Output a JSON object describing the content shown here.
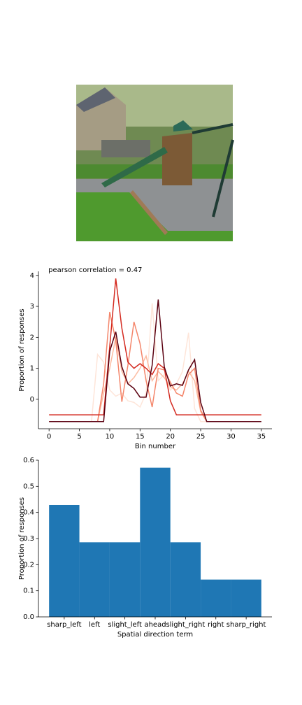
{
  "chart_data": [
    {
      "type": "line",
      "title": "pearson correlation = 0.47",
      "xlabel": "Bin number",
      "ylabel": "Proportion of responses",
      "x": [
        0,
        1,
        2,
        3,
        4,
        5,
        6,
        7,
        8,
        9,
        10,
        11,
        12,
        13,
        14,
        15,
        16,
        17,
        18,
        19,
        20,
        21,
        22,
        23,
        24,
        25,
        26,
        27,
        28,
        29,
        30,
        31,
        32,
        33,
        34,
        35
      ],
      "series": [
        {
          "color": "#fee5d9",
          "values": [
            -0.72,
            -0.72,
            -0.72,
            -0.72,
            -0.72,
            -0.72,
            -0.72,
            -0.72,
            1.45,
            1.2,
            0.3,
            0.1,
            0.2,
            -0.05,
            -0.1,
            -0.25,
            0.2,
            3.1,
            0.6,
            0.8,
            0.3,
            0.5,
            0.9,
            2.15,
            -0.3,
            -0.72,
            -0.72,
            -0.72,
            -0.72,
            -0.72,
            -0.72,
            -0.72,
            -0.72,
            -0.72,
            -0.72,
            -0.72
          ]
        },
        {
          "color": "#fcbba1",
          "values": [
            -0.72,
            -0.72,
            -0.72,
            -0.72,
            -0.72,
            -0.72,
            -0.72,
            -0.72,
            -0.72,
            0.2,
            1.0,
            2.0,
            0.9,
            0.5,
            0.7,
            1.0,
            1.4,
            0.6,
            0.9,
            0.7,
            0.4,
            0.3,
            0.5,
            0.9,
            0.6,
            -0.4,
            -0.72,
            -0.72,
            -0.72,
            -0.72,
            -0.72,
            -0.72,
            -0.72,
            -0.72,
            -0.72,
            -0.72
          ]
        },
        {
          "color": "#f4866b",
          "values": [
            -0.72,
            -0.72,
            -0.72,
            -0.72,
            -0.72,
            -0.72,
            -0.72,
            -0.72,
            -0.72,
            0.5,
            2.82,
            1.9,
            -0.08,
            1.1,
            2.5,
            1.8,
            0.6,
            -0.25,
            1.0,
            0.95,
            0.55,
            0.2,
            0.1,
            0.8,
            1.0,
            -0.35,
            -0.72,
            -0.72,
            -0.72,
            -0.72,
            -0.72,
            -0.72,
            -0.72,
            -0.72,
            -0.72,
            -0.72
          ]
        },
        {
          "color": "#d42a20",
          "values": [
            -0.5,
            -0.5,
            -0.5,
            -0.5,
            -0.5,
            -0.5,
            -0.5,
            -0.5,
            -0.5,
            -0.5,
            1.7,
            3.9,
            2.3,
            1.2,
            1.0,
            1.15,
            1.0,
            0.8,
            1.15,
            1.0,
            -0.05,
            -0.5,
            -0.5,
            -0.5,
            -0.5,
            -0.5,
            -0.5,
            -0.5,
            -0.5,
            -0.5,
            -0.5,
            -0.5,
            -0.5,
            -0.5,
            -0.5,
            -0.5
          ]
        },
        {
          "color": "#5a0010",
          "values": [
            -0.72,
            -0.72,
            -0.72,
            -0.72,
            -0.72,
            -0.72,
            -0.72,
            -0.72,
            -0.72,
            -0.72,
            1.55,
            2.18,
            1.05,
            0.5,
            0.35,
            0.07,
            0.07,
            1.1,
            3.22,
            1.05,
            0.43,
            0.5,
            0.45,
            0.95,
            1.28,
            -0.1,
            -0.72,
            -0.72,
            -0.72,
            -0.72,
            -0.72,
            -0.72,
            -0.72,
            -0.72,
            -0.72,
            -0.72
          ]
        }
      ],
      "xlim": [
        -1.75,
        36.75
      ],
      "xticks": [
        0,
        5,
        10,
        15,
        20,
        25,
        30,
        35
      ],
      "ylim": [
        -0.95,
        4.13
      ],
      "yticks": [
        0,
        1,
        2,
        3,
        4
      ]
    },
    {
      "type": "bar",
      "xlabel": "Spatial direction term",
      "ylabel": "Proportion of responses",
      "categories": [
        "sharp_left",
        "left",
        "slight_left",
        "ahead",
        "slight_right",
        "right",
        "sharp_right"
      ],
      "values": [
        0.4286,
        0.2857,
        0.2857,
        0.5714,
        0.2857,
        0.1429,
        0.1429
      ],
      "color": "#1f77b4",
      "xlim": [
        -0.85,
        6.85
      ],
      "ylim": [
        0,
        0.6
      ],
      "yticks": [
        {
          "value": 0,
          "label": "0.0"
        },
        {
          "value": 0.1,
          "label": "0.1"
        },
        {
          "value": 0.2,
          "label": "0.2"
        },
        {
          "value": 0.3,
          "label": "0.3"
        },
        {
          "value": 0.4,
          "label": "0.4"
        },
        {
          "value": 0.5,
          "label": "0.5"
        },
        {
          "value": 0.6,
          "label": "0.6"
        }
      ]
    }
  ]
}
